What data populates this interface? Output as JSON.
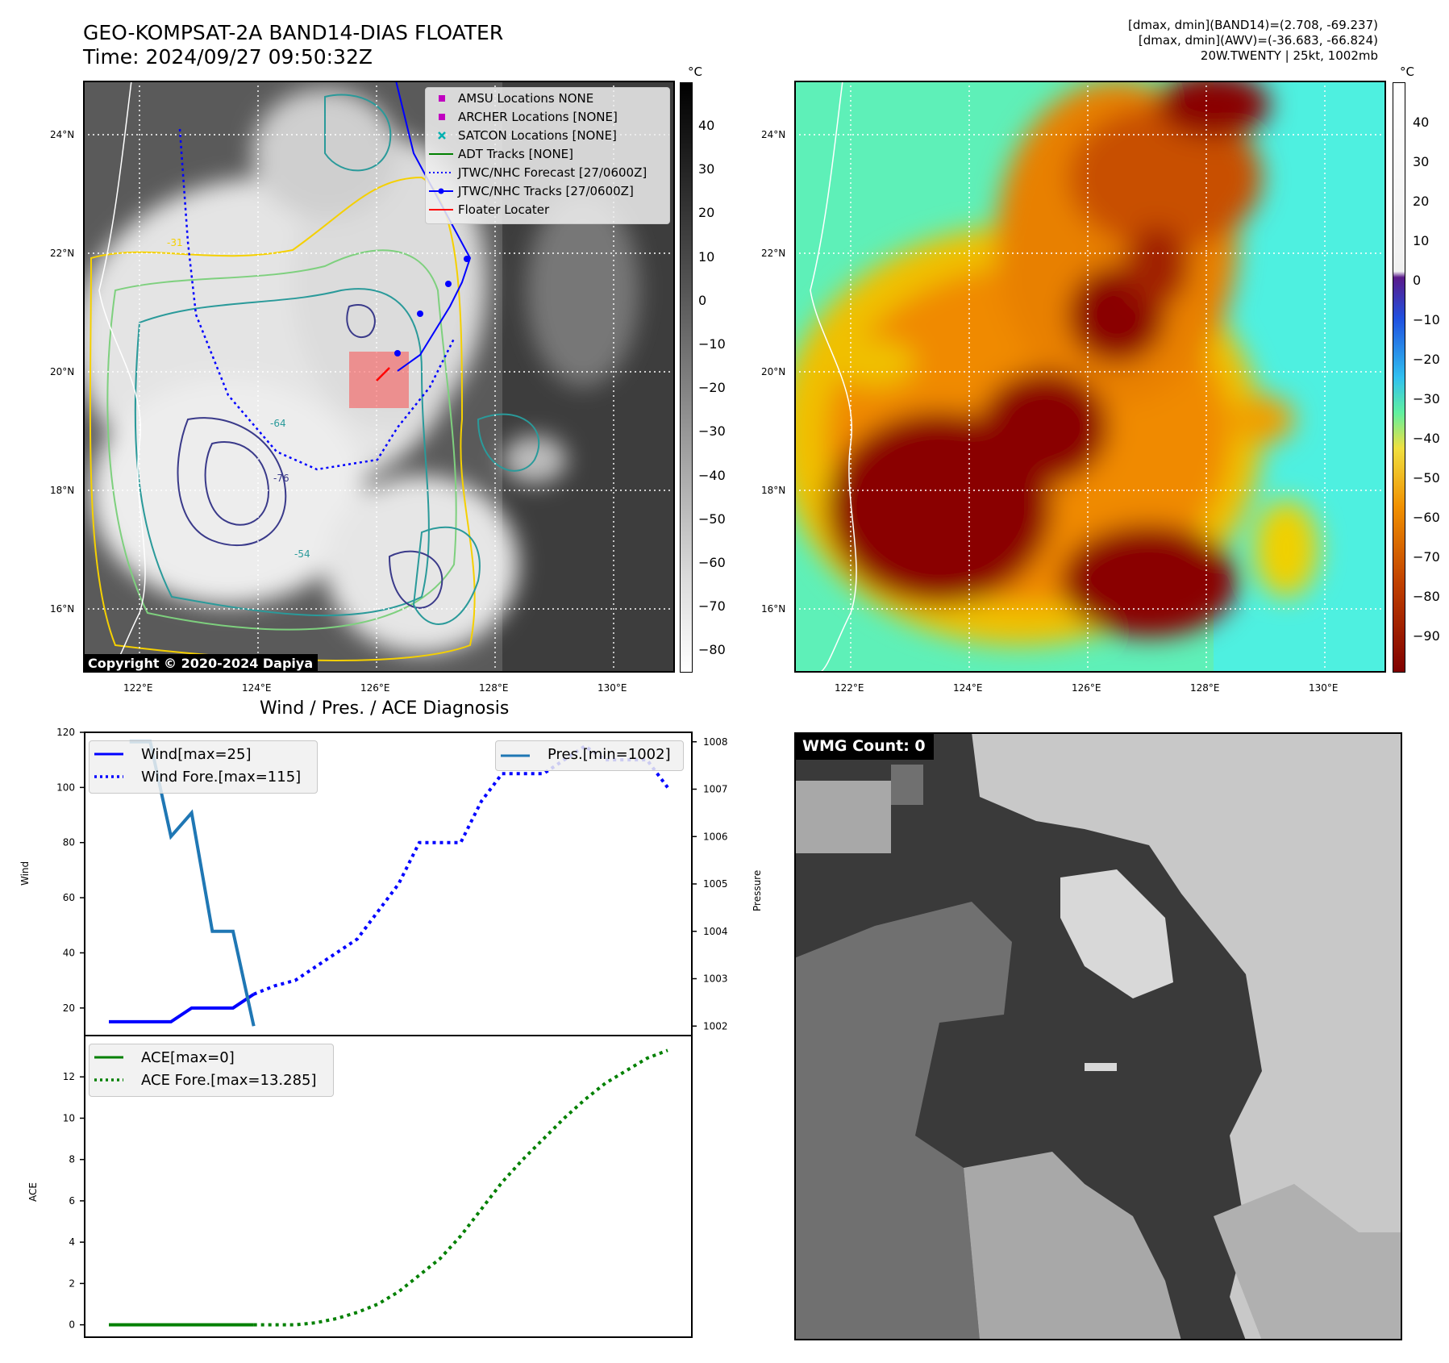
{
  "header": {
    "title_line1": "GEO-KOMPSAT-2A BAND14-DIAS FLOATER",
    "title_line2": "Time: 2024/09/27 09:50:32Z",
    "right_line1": "[dmax, dmin](BAND14)=(2.708, -69.237)",
    "right_line2": "[dmax, dmin](AWV)=(-36.683, -66.824)",
    "right_line3": "20W.TWENTY | 25kt, 1002mb"
  },
  "maps": {
    "lat_labels": [
      "24°N",
      "22°N",
      "20°N",
      "18°N",
      "16°N"
    ],
    "lon_labels": [
      "122°E",
      "124°E",
      "126°E",
      "128°E",
      "130°E"
    ],
    "contour_labels": [
      "-31",
      "-64",
      "-76",
      "-54"
    ],
    "copyright": "Copyright © 2020-2024 Dapiya",
    "legend": [
      {
        "label": "AMSU Locations NONE",
        "color": "#c000c0",
        "marker": "square"
      },
      {
        "label": "ARCHER Locations [NONE]",
        "color": "#c000c0",
        "marker": "square"
      },
      {
        "label": "SATCON Locations [NONE]",
        "color": "#00b0b0",
        "marker": "x"
      },
      {
        "label": "ADT Tracks [NONE]",
        "color": "#008000",
        "marker": "line"
      },
      {
        "label": "JTWC/NHC Forecast [27/0600Z]",
        "color": "#0000ff",
        "marker": "dotted"
      },
      {
        "label": "JTWC/NHC Tracks [27/0600Z]",
        "color": "#0000ff",
        "marker": "dotline"
      },
      {
        "label": "Floater Locater",
        "color": "#ff0000",
        "marker": "line"
      }
    ],
    "colorbar1": {
      "unit": "°C",
      "ticks": [
        "40",
        "30",
        "20",
        "10",
        "0",
        "−10",
        "−20",
        "−30",
        "−40",
        "−50",
        "−60",
        "−70",
        "−80"
      ]
    },
    "colorbar2": {
      "unit": "°C",
      "ticks": [
        "40",
        "30",
        "20",
        "10",
        "0",
        "−10",
        "−20",
        "−30",
        "−40",
        "−50",
        "−60",
        "−70",
        "−80",
        "−90"
      ]
    }
  },
  "chart_data": [
    {
      "type": "line",
      "title": "Wind / Pres. / ACE Diagnosis",
      "ylabel": "Wind",
      "y2label": "Pressure",
      "ylim": [
        10,
        120
      ],
      "y2lim": [
        1001.8,
        1008.2
      ],
      "yticks": [
        20,
        40,
        60,
        80,
        100,
        120
      ],
      "y2ticks": [
        1002,
        1003,
        1004,
        1005,
        1006,
        1007,
        1008
      ],
      "series": [
        {
          "name": "Wind[max=25]",
          "axis": "left",
          "style": "solid",
          "color": "#0000ff",
          "x": [
            0,
            3,
            4,
            5,
            6,
            7
          ],
          "values": [
            15,
            15,
            20,
            20,
            20,
            25
          ]
        },
        {
          "name": "Wind Fore.[max=115]",
          "axis": "left",
          "style": "dotted",
          "color": "#0000ff",
          "x": [
            7,
            8,
            9,
            10,
            11,
            12,
            13,
            14,
            15,
            16,
            17,
            18,
            19,
            20,
            21,
            22,
            23,
            24,
            25,
            26,
            27
          ],
          "values": [
            25,
            28,
            30,
            35,
            40,
            45,
            55,
            65,
            80,
            80,
            80,
            95,
            105,
            105,
            105,
            110,
            115,
            110,
            110,
            110,
            100
          ]
        },
        {
          "name": "Pres.[min=1002]",
          "axis": "right",
          "style": "solid",
          "color": "#1f77b4",
          "x": [
            1,
            2,
            3,
            4,
            5,
            6,
            7
          ],
          "values": [
            1008,
            1008,
            1006,
            1006.5,
            1004,
            1004,
            1002
          ]
        }
      ],
      "legend_left": [
        "Wind[max=25]",
        "Wind Fore.[max=115]"
      ],
      "legend_right": [
        "Pres.[min=1002]"
      ]
    },
    {
      "type": "line",
      "ylabel": "ACE",
      "ylim": [
        -0.6,
        14
      ],
      "yticks": [
        0,
        2,
        4,
        6,
        8,
        10,
        12
      ],
      "series": [
        {
          "name": "ACE[max=0]",
          "style": "solid",
          "color": "#008000",
          "x": [
            0,
            7
          ],
          "values": [
            0,
            0
          ]
        },
        {
          "name": "ACE Fore.[max=13.285]",
          "style": "dotted",
          "color": "#008000",
          "x": [
            7,
            8,
            9,
            10,
            11,
            12,
            13,
            14,
            15,
            16,
            17,
            18,
            19,
            20,
            21,
            22,
            23,
            24,
            25,
            26,
            27
          ],
          "values": [
            0,
            0,
            0,
            0.1,
            0.3,
            0.6,
            1.0,
            1.6,
            2.4,
            3.2,
            4.3,
            5.6,
            6.9,
            8.0,
            9.0,
            10.0,
            10.9,
            11.7,
            12.3,
            12.9,
            13.285
          ]
        }
      ]
    }
  ],
  "wmg": {
    "label": "WMG Count: 0"
  }
}
